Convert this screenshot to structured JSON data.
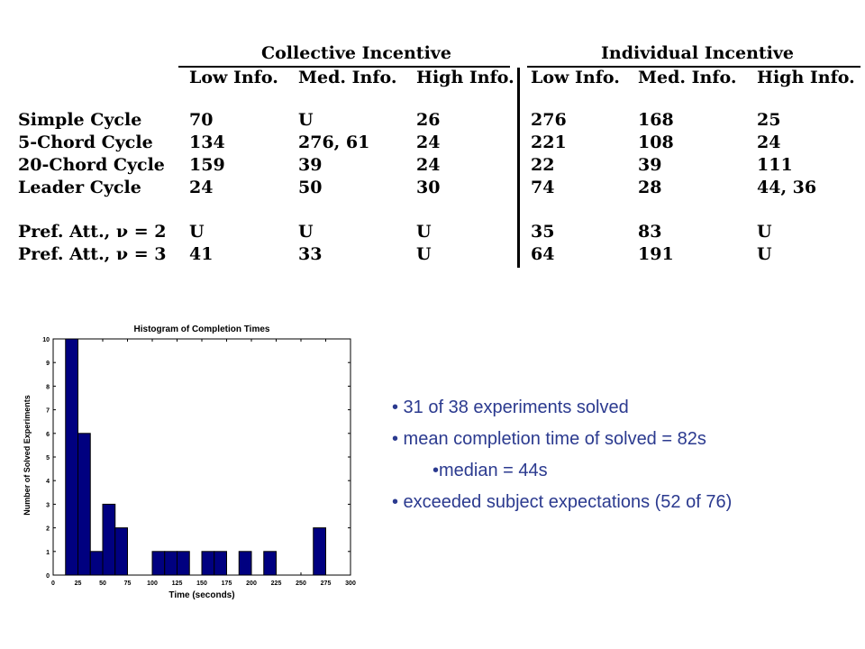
{
  "table": {
    "groups": [
      "Collective Incentive",
      "Individual Incentive"
    ],
    "subheaders": [
      "Low Info.",
      "Med. Info.",
      "High Info.",
      "Low Info.",
      "Med. Info.",
      "High Info."
    ],
    "rows": [
      {
        "label": "Simple Cycle",
        "cells": [
          "70",
          "U",
          "26",
          "276",
          "168",
          "25"
        ]
      },
      {
        "label": "5-Chord Cycle",
        "cells": [
          "134",
          "276, 61",
          "24",
          "221",
          "108",
          "24"
        ]
      },
      {
        "label": "20-Chord Cycle",
        "cells": [
          "159",
          "39",
          "24",
          "22",
          "39",
          "111"
        ]
      },
      {
        "label": "Leader Cycle",
        "cells": [
          "24",
          "50",
          "30",
          "74",
          "28",
          "44, 36"
        ]
      },
      {
        "label": "Pref. Att., ν = 2",
        "cells": [
          "U",
          "U",
          "U",
          "35",
          "83",
          "U"
        ]
      },
      {
        "label": "Pref. Att., ν = 3",
        "cells": [
          "41",
          "33",
          "U",
          "64",
          "191",
          "U"
        ]
      }
    ]
  },
  "chart_data": {
    "type": "bar",
    "title": "Histogram of Completion Times",
    "xlabel": "Time (seconds)",
    "ylabel": "Number of Solved Experiments",
    "xlim": [
      0,
      300
    ],
    "ylim": [
      0,
      10
    ],
    "xticks": [
      "0",
      "25",
      "50",
      "75",
      "100",
      "125",
      "150",
      "175",
      "200",
      "225",
      "250",
      "275",
      "300"
    ],
    "yticks": [
      "0",
      "1",
      "2",
      "3",
      "4",
      "5",
      "6",
      "7",
      "8",
      "9",
      "10"
    ],
    "bin_width": 12.5,
    "bins": [
      {
        "x": 18.75,
        "value": 10
      },
      {
        "x": 31.25,
        "value": 6
      },
      {
        "x": 43.75,
        "value": 1
      },
      {
        "x": 56.25,
        "value": 3
      },
      {
        "x": 68.75,
        "value": 2
      },
      {
        "x": 106.25,
        "value": 1
      },
      {
        "x": 118.75,
        "value": 1
      },
      {
        "x": 131.25,
        "value": 1
      },
      {
        "x": 156.25,
        "value": 1
      },
      {
        "x": 168.75,
        "value": 1
      },
      {
        "x": 193.75,
        "value": 1
      },
      {
        "x": 218.75,
        "value": 1
      },
      {
        "x": 268.75,
        "value": 2
      }
    ],
    "bar_color": "#000080"
  },
  "bullets": [
    "• 31 of 38 experiments solved",
    "• mean completion time of solved = 82s",
    "•median = 44s",
    "• exceeded subject expectations (52 of 76)"
  ],
  "colors": {
    "bullet_text": "#2b3a8f",
    "bar": "#000080"
  }
}
